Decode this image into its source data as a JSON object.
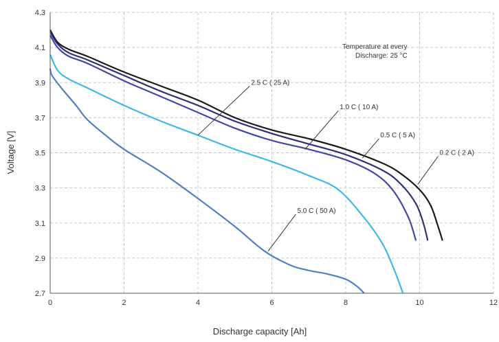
{
  "chart_data": {
    "type": "line",
    "title": "",
    "xlabel": "Discharge capacity [Ah]",
    "ylabel": "Voltage [V]",
    "xlim": [
      0,
      12
    ],
    "ylim": [
      2.7,
      4.3
    ],
    "x_ticks": [
      "0",
      "2",
      "4",
      "6",
      "8",
      "10",
      "12"
    ],
    "y_ticks": [
      "2.7",
      "2.9",
      "3.1",
      "3.3",
      "3.5",
      "3.7",
      "3.9",
      "4.1",
      "4.3"
    ],
    "grid": true,
    "legend": "none",
    "note_line1": "Temperature at every",
    "note_line2": "Discharge:    25 °C",
    "series": [
      {
        "name": "0.2 C ( 2 A)",
        "color": "#1a1a1a",
        "x": [
          0,
          0.2,
          0.5,
          1,
          2,
          3,
          4,
          5,
          6,
          7,
          8,
          9,
          9.5,
          10,
          10.3,
          10.5,
          10.62
        ],
        "y": [
          4.2,
          4.13,
          4.09,
          4.05,
          3.96,
          3.88,
          3.8,
          3.7,
          3.63,
          3.58,
          3.52,
          3.44,
          3.38,
          3.29,
          3.2,
          3.08,
          3.0
        ]
      },
      {
        "name": "0.5 C ( 5 A)",
        "color": "#2a2f78",
        "x": [
          0,
          0.2,
          0.5,
          1,
          2,
          3,
          4,
          5,
          6,
          7,
          8,
          9,
          9.5,
          9.9,
          10.1,
          10.22
        ],
        "y": [
          4.19,
          4.12,
          4.07,
          4.03,
          3.94,
          3.85,
          3.77,
          3.68,
          3.61,
          3.55,
          3.49,
          3.4,
          3.32,
          3.21,
          3.1,
          3.0
        ]
      },
      {
        "name": "1.0 C ( 10 A)",
        "color": "#3f48a3",
        "x": [
          0,
          0.2,
          0.5,
          1,
          2,
          3,
          4,
          5,
          6,
          7,
          8,
          8.8,
          9.3,
          9.7,
          9.9
        ],
        "y": [
          4.17,
          4.1,
          4.05,
          4.01,
          3.91,
          3.82,
          3.73,
          3.64,
          3.57,
          3.52,
          3.46,
          3.38,
          3.28,
          3.13,
          3.0
        ]
      },
      {
        "name": "2.5 C ( 25 A)",
        "color": "#3fb8e8",
        "x": [
          0,
          0.2,
          0.5,
          1,
          2,
          3,
          4,
          5,
          6,
          7,
          7.8,
          8.5,
          9.0,
          9.3,
          9.55
        ],
        "y": [
          4.06,
          3.97,
          3.92,
          3.87,
          3.77,
          3.68,
          3.6,
          3.52,
          3.45,
          3.37,
          3.29,
          3.13,
          2.98,
          2.84,
          2.7
        ]
      },
      {
        "name": "5.0 C ( 50 A)",
        "color": "#4d80c4",
        "x": [
          0,
          0.05,
          0.3,
          0.7,
          1,
          1.5,
          2,
          3,
          4,
          5,
          5.8,
          6.5,
          7,
          7.5,
          8,
          8.3,
          8.5
        ],
        "y": [
          3.98,
          3.94,
          3.87,
          3.77,
          3.69,
          3.6,
          3.52,
          3.39,
          3.24,
          3.08,
          2.94,
          2.86,
          2.83,
          2.81,
          2.78,
          2.74,
          2.7
        ]
      }
    ],
    "annotations": [
      {
        "series": "2.5 C ( 25 A)",
        "text": "2.5  C ( 25  A)",
        "point": [
          4,
          3.6
        ],
        "label_at": [
          5.4,
          3.88
        ]
      },
      {
        "series": "1.0 C ( 10 A)",
        "text": "1.0  C ( 10  A)",
        "point": [
          6.9,
          3.52
        ],
        "label_at": [
          7.8,
          3.74
        ]
      },
      {
        "series": "0.5 C ( 5 A)",
        "text": "0.5  C ( 5  A)",
        "point": [
          8.45,
          3.47
        ],
        "label_at": [
          8.9,
          3.58
        ]
      },
      {
        "series": "0.2 C ( 2 A)",
        "text": "0.2  C ( 2  A)",
        "point": [
          9.95,
          3.32
        ],
        "label_at": [
          10.5,
          3.48
        ]
      },
      {
        "series": "5.0 C ( 50 A)",
        "text": "5.0  C ( 50  A)",
        "point": [
          5.9,
          2.94
        ],
        "label_at": [
          6.65,
          3.15
        ]
      }
    ]
  }
}
